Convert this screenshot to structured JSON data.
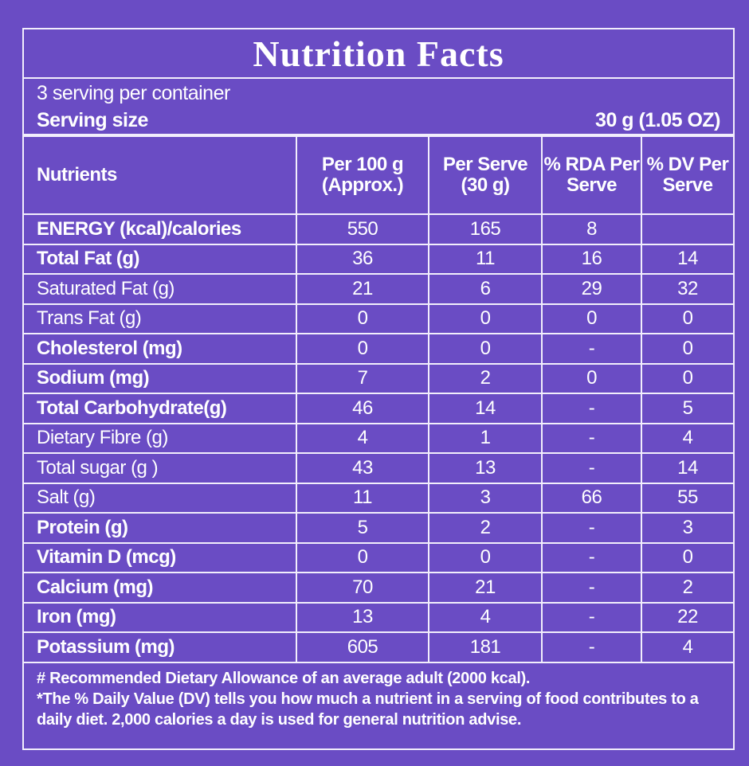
{
  "title": "Nutrition Facts",
  "servings": "3 serving per container",
  "serving_size": {
    "label": "Serving size",
    "value": "30 g (1.05 OZ)"
  },
  "table": {
    "headers": [
      "Nutrients",
      "Per 100 g (Approx.)",
      "Per Serve (30 g)",
      "% RDA Per Serve",
      "% DV Per Serve"
    ],
    "rows": [
      {
        "nutrient": "ENERGY (kcal)/calories",
        "bold": true,
        "values": [
          550,
          165,
          8,
          null
        ]
      },
      {
        "nutrient": "Total Fat (g)",
        "bold": true,
        "values": [
          36,
          11,
          16,
          14
        ]
      },
      {
        "nutrient": "Saturated Fat (g)",
        "bold": false,
        "values": [
          21,
          6,
          29,
          32
        ]
      },
      {
        "nutrient": "Trans Fat (g)",
        "bold": false,
        "values": [
          0,
          0,
          0,
          0
        ]
      },
      {
        "nutrient": "Cholesterol (mg)",
        "bold": true,
        "values": [
          0,
          0,
          "-",
          0
        ]
      },
      {
        "nutrient": "Sodium (mg)",
        "bold": true,
        "values": [
          7,
          2,
          0,
          0
        ]
      },
      {
        "nutrient": "Total Carbohydrate(g)",
        "bold": true,
        "values": [
          46,
          14,
          "-",
          5
        ]
      },
      {
        "nutrient": "Dietary Fibre (g)",
        "bold": false,
        "values": [
          4,
          1,
          "-",
          4
        ]
      },
      {
        "nutrient": "Total sugar (g )",
        "bold": false,
        "values": [
          43,
          13,
          "-",
          14
        ]
      },
      {
        "nutrient": "Salt (g)",
        "bold": false,
        "values": [
          11,
          3,
          66,
          55
        ]
      },
      {
        "nutrient": "Protein (g)",
        "bold": true,
        "values": [
          5,
          2,
          "-",
          3
        ]
      },
      {
        "nutrient": "Vitamin D (mcg)",
        "bold": true,
        "values": [
          0,
          0,
          "-",
          0
        ]
      },
      {
        "nutrient": "Calcium (mg)",
        "bold": true,
        "values": [
          70,
          21,
          "-",
          2
        ]
      },
      {
        "nutrient": "Iron (mg)",
        "bold": true,
        "values": [
          13,
          4,
          "-",
          22
        ]
      },
      {
        "nutrient": "Potassium (mg)",
        "bold": true,
        "values": [
          605,
          181,
          "-",
          4
        ]
      }
    ]
  },
  "footnotes": [
    "# Recommended Dietary Allowance of an average adult (2000 kcal).",
    "*The % Daily Value (DV) tells you how much a nutrient in a serving of food contributes to a daily diet. 2,000 calories a day is used for general nutrition advise."
  ]
}
